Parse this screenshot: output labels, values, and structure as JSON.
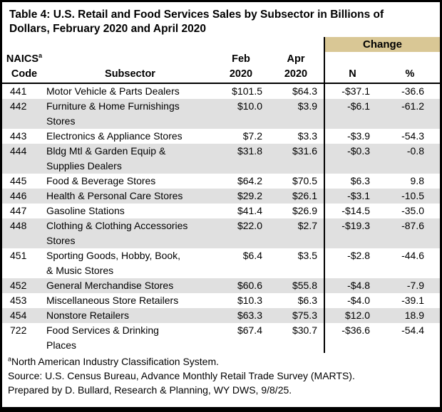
{
  "title": "Table 4: U.S. Retail and Food Services Sales by Subsector in Billions of\nDollars, February 2020 and April 2020",
  "header": {
    "change": "Change",
    "columns": {
      "naics": "NAICS",
      "naics_sup": "a",
      "code": "Code",
      "subsector": "Subsector",
      "feb": "Feb",
      "feb_year": "2020",
      "apr": "Apr",
      "apr_year": "2020",
      "n": "N",
      "pct": "%"
    }
  },
  "table": {
    "rows": [
      {
        "code": "441",
        "subsector": "Motor Vehicle & Parts Dealers",
        "feb": "$101.5",
        "apr": "$64.3",
        "n": "-$37.1",
        "pct": "-36.6"
      },
      {
        "code": "442",
        "subsector": "Furniture & Home Furnishings\nStores",
        "feb": "$10.0",
        "apr": "$3.9",
        "n": "-$6.1",
        "pct": "-61.2"
      },
      {
        "code": "443",
        "subsector": "Electronics & Appliance Stores",
        "feb": "$7.2",
        "apr": "$3.3",
        "n": "-$3.9",
        "pct": "-54.3"
      },
      {
        "code": "444",
        "subsector": "Bldg Mtl & Garden Equip &\nSupplies Dealers",
        "feb": "$31.8",
        "apr": "$31.6",
        "n": "-$0.3",
        "pct": "-0.8"
      },
      {
        "code": "445",
        "subsector": "Food & Beverage Stores",
        "feb": "$64.2",
        "apr": "$70.5",
        "n": "$6.3",
        "pct": "9.8"
      },
      {
        "code": "446",
        "subsector": "Health & Personal Care Stores",
        "feb": "$29.2",
        "apr": "$26.1",
        "n": "-$3.1",
        "pct": "-10.5"
      },
      {
        "code": "447",
        "subsector": "Gasoline Stations",
        "feb": "$41.4",
        "apr": "$26.9",
        "n": "-$14.5",
        "pct": "-35.0"
      },
      {
        "code": "448",
        "subsector": "Clothing & Clothing Accessories\nStores",
        "feb": "$22.0",
        "apr": "$2.7",
        "n": "-$19.3",
        "pct": "-87.6"
      },
      {
        "code": "451",
        "subsector": "Sporting Goods, Hobby, Book,\n& Music Stores",
        "feb": "$6.4",
        "apr": "$3.5",
        "n": "-$2.8",
        "pct": "-44.6"
      },
      {
        "code": "452",
        "subsector": "General Merchandise Stores",
        "feb": "$60.6",
        "apr": "$55.8",
        "n": "-$4.8",
        "pct": "-7.9"
      },
      {
        "code": "453",
        "subsector": "Miscellaneous Store Retailers",
        "feb": "$10.3",
        "apr": "$6.3",
        "n": "-$4.0",
        "pct": "-39.1"
      },
      {
        "code": "454",
        "subsector": "Nonstore Retailers",
        "feb": "$63.3",
        "apr": "$75.3",
        "n": "$12.0",
        "pct": "18.9"
      },
      {
        "code": "722",
        "subsector": "Food Services & Drinking\nPlaces",
        "feb": "$67.4",
        "apr": "$30.7",
        "n": "-$36.6",
        "pct": "-54.4"
      }
    ]
  },
  "footnotes": {
    "sup": "a",
    "note": "North American Industry Classification System.",
    "source": "Source: U.S. Census Bureau, Advance Monthly Retail Trade Survey (MARTS).",
    "prepared": "Prepared by D. Bullard, Research & Planning, WY DWS, 9/8/25."
  },
  "colors": {
    "change_header_bg": "#d9c795",
    "row_alt_bg": "#e0e0e0",
    "border": "#000000"
  },
  "chart_data": {
    "type": "table",
    "title": "Table 4: U.S. Retail and Food Services Sales by Subsector in Billions of Dollars, February 2020 and April 2020",
    "columns": [
      "NAICS Code",
      "Subsector",
      "Feb 2020",
      "Apr 2020",
      "Change N",
      "Change %"
    ],
    "rows": [
      {
        "naics_code": "441",
        "subsector": "Motor Vehicle & Parts Dealers",
        "feb_2020": 101.5,
        "apr_2020": 64.3,
        "change_n": -37.1,
        "change_pct": -36.6
      },
      {
        "naics_code": "442",
        "subsector": "Furniture & Home Furnishings Stores",
        "feb_2020": 10.0,
        "apr_2020": 3.9,
        "change_n": -6.1,
        "change_pct": -61.2
      },
      {
        "naics_code": "443",
        "subsector": "Electronics & Appliance Stores",
        "feb_2020": 7.2,
        "apr_2020": 3.3,
        "change_n": -3.9,
        "change_pct": -54.3
      },
      {
        "naics_code": "444",
        "subsector": "Bldg Mtl & Garden Equip & Supplies Dealers",
        "feb_2020": 31.8,
        "apr_2020": 31.6,
        "change_n": -0.3,
        "change_pct": -0.8
      },
      {
        "naics_code": "445",
        "subsector": "Food & Beverage Stores",
        "feb_2020": 64.2,
        "apr_2020": 70.5,
        "change_n": 6.3,
        "change_pct": 9.8
      },
      {
        "naics_code": "446",
        "subsector": "Health & Personal Care Stores",
        "feb_2020": 29.2,
        "apr_2020": 26.1,
        "change_n": -3.1,
        "change_pct": -10.5
      },
      {
        "naics_code": "447",
        "subsector": "Gasoline Stations",
        "feb_2020": 41.4,
        "apr_2020": 26.9,
        "change_n": -14.5,
        "change_pct": -35.0
      },
      {
        "naics_code": "448",
        "subsector": "Clothing & Clothing Accessories Stores",
        "feb_2020": 22.0,
        "apr_2020": 2.7,
        "change_n": -19.3,
        "change_pct": -87.6
      },
      {
        "naics_code": "451",
        "subsector": "Sporting Goods, Hobby, Book, & Music Stores",
        "feb_2020": 6.4,
        "apr_2020": 3.5,
        "change_n": -2.8,
        "change_pct": -44.6
      },
      {
        "naics_code": "452",
        "subsector": "General Merchandise Stores",
        "feb_2020": 60.6,
        "apr_2020": 55.8,
        "change_n": -4.8,
        "change_pct": -7.9
      },
      {
        "naics_code": "453",
        "subsector": "Miscellaneous Store Retailers",
        "feb_2020": 10.3,
        "apr_2020": 6.3,
        "change_n": -4.0,
        "change_pct": -39.1
      },
      {
        "naics_code": "454",
        "subsector": "Nonstore Retailers",
        "feb_2020": 63.3,
        "apr_2020": 75.3,
        "change_n": 12.0,
        "change_pct": 18.9
      },
      {
        "naics_code": "722",
        "subsector": "Food Services & Drinking Places",
        "feb_2020": 67.4,
        "apr_2020": 30.7,
        "change_n": -36.6,
        "change_pct": -54.4
      }
    ],
    "units": "Billions of Dollars",
    "notes": [
      "a: North American Industry Classification System.",
      "Source: U.S. Census Bureau, Advance Monthly Retail Trade Survey (MARTS).",
      "Prepared by D. Bullard, Research & Planning, WY DWS, 9/8/25."
    ]
  }
}
